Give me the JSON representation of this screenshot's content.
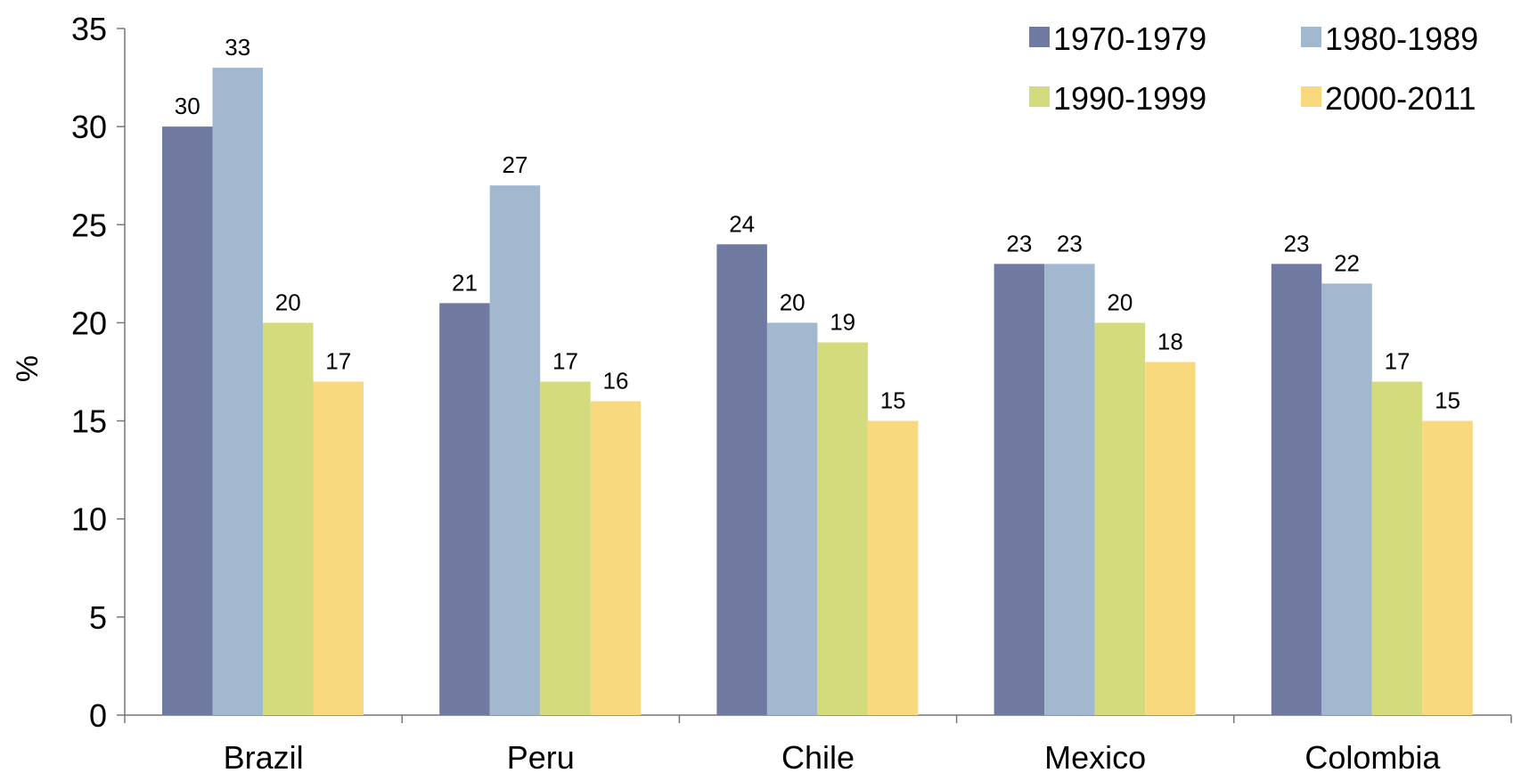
{
  "chart_data": {
    "type": "bar",
    "categories": [
      "Brazil",
      "Peru",
      "Chile",
      "Mexico",
      "Colombia"
    ],
    "series": [
      {
        "name": "1970-1979",
        "color": "#7079A0",
        "values": [
          30,
          21,
          24,
          23,
          23
        ]
      },
      {
        "name": "1980-1989",
        "color": "#A2B8CF",
        "values": [
          33,
          27,
          20,
          23,
          22
        ]
      },
      {
        "name": "1990-1999",
        "color": "#D3DB7C",
        "values": [
          20,
          17,
          19,
          20,
          17
        ]
      },
      {
        "name": "2000-2011",
        "color": "#F9D97E",
        "values": [
          17,
          16,
          15,
          18,
          15
        ]
      }
    ],
    "title": "",
    "xlabel": "",
    "ylabel": "%",
    "ylim": [
      0,
      35
    ],
    "yticks": [
      0,
      5,
      10,
      15,
      20,
      25,
      30,
      35
    ],
    "grid": false,
    "data_labels": true,
    "legend_position": "top-right"
  }
}
